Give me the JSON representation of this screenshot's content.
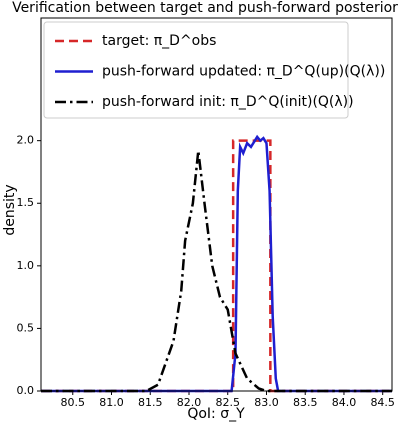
{
  "chart_data": {
    "type": "line",
    "title": "Verification between target and push-forward posterior",
    "x_label": "QoI: σ_Y",
    "y_label": "density",
    "xlim": [
      80.09,
      84.62
    ],
    "ylim": [
      0,
      2.98
    ],
    "xticks": [
      80.5,
      {
        "value": 81,
        "label": "81.0"
      },
      81.5,
      {
        "value": 82,
        "label": "82.0"
      },
      82.5,
      {
        "value": 83,
        "label": "83.0"
      },
      83.5,
      {
        "value": 84,
        "label": "84.0"
      },
      84.5
    ],
    "yticks": [
      {
        "value": 0,
        "label": "0.0"
      },
      0.5,
      {
        "value": 1,
        "label": "1.0"
      },
      1.5,
      {
        "value": 2,
        "label": "2.0"
      }
    ],
    "grid": false,
    "legend": "upper left",
    "series": [
      {
        "name": "target: π_D^obs",
        "color": "#d62728",
        "dash": "dashed",
        "x": [
          80.09,
          82.57,
          82.57,
          83.05,
          83.05,
          84.62
        ],
        "values": [
          0,
          0,
          2.0,
          2.0,
          0,
          0
        ]
      },
      {
        "name": "push-forward updated: π_D^Q(up)(Q(λ))",
        "color": "#1f1fd0",
        "dash": "solid",
        "x": [
          80.09,
          82.55,
          82.6,
          82.63,
          82.66,
          82.7,
          82.75,
          82.8,
          82.85,
          82.88,
          82.92,
          82.96,
          83.0,
          83.04,
          83.08,
          83.12,
          83.15,
          84.62
        ],
        "values": [
          0,
          0,
          0.3,
          1.6,
          1.95,
          1.9,
          1.98,
          1.95,
          2.0,
          2.03,
          2.0,
          2.02,
          1.98,
          1.6,
          0.6,
          0.1,
          0,
          0
        ]
      },
      {
        "name": "push-forward init: π_D^Q(init)(Q(λ))",
        "color": "#000000",
        "dash": "dashdot",
        "x": [
          80.09,
          81.45,
          81.6,
          81.8,
          81.9,
          81.95,
          82.05,
          82.12,
          82.2,
          82.3,
          82.4,
          82.5,
          82.6,
          82.75,
          82.9,
          83.0,
          84.62
        ],
        "values": [
          0,
          0,
          0.05,
          0.4,
          0.8,
          1.2,
          1.5,
          1.92,
          1.5,
          1.0,
          0.75,
          0.65,
          0.3,
          0.1,
          0.02,
          0,
          0
        ]
      }
    ]
  }
}
